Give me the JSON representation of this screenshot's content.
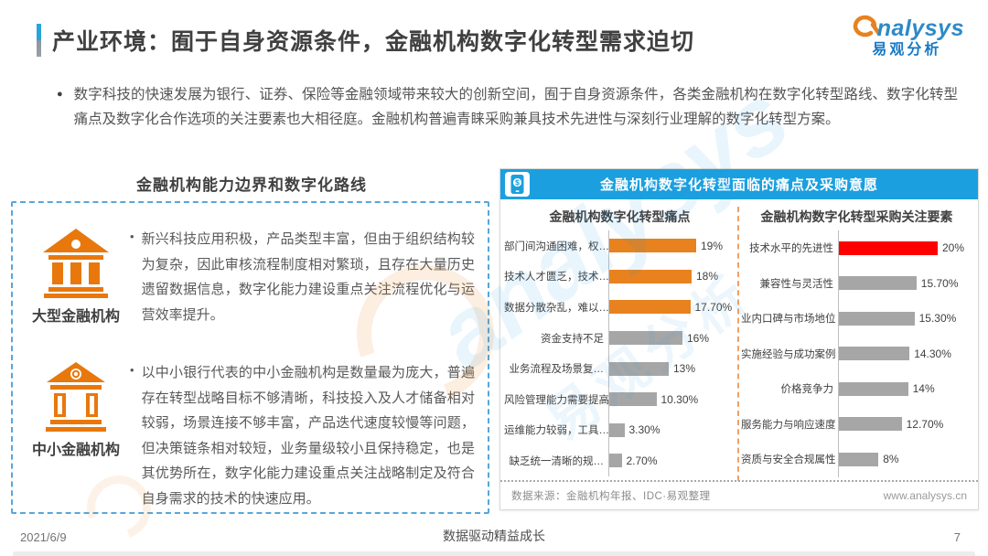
{
  "page": {
    "title": "产业环境：囿于自身资源条件，金融机构数字化转型需求迫切",
    "footer": {
      "date": "2021/6/9",
      "slogan": "数据驱动精益成长",
      "page_number": "7"
    }
  },
  "logo": {
    "brand": "nalysys",
    "brand_cn": "易观分析",
    "swirl_icon": "analysys-swirl-icon"
  },
  "watermark": {
    "brand": "analysys",
    "brand_cn": "易观分析"
  },
  "intro": {
    "bullet": "●",
    "text": "数字科技的快速发展为银行、证券、保险等金融领域带来较大的创新空间，囿于自身资源条件，各类金融机构在数字化转型路线、数字化转型痛点及数字化合作选项的关注要素也大相径庭。金融机构普遍青睐采购兼具技术先进性与深刻行业理解的数字化转型方案。"
  },
  "left_panel": {
    "heading": "金融机构能力边界和数字化路线",
    "items": [
      {
        "icon": "bank-solid-icon",
        "label": "大型金融机构",
        "bullet": "•",
        "text": "新兴科技应用积极，产品类型丰富，但由于组织结构较为复杂，因此审核流程制度相对繁琐，且存在大量历史遗留数据信息，数字化能力建设重点关注流程优化与运营效率提升。"
      },
      {
        "icon": "bank-outline-icon",
        "label": "中小金融机构",
        "bullet": "•",
        "text": "以中小银行代表的中小金融机构是数量最为庞大，普遍存在转型战略目标不够清晰，科技投入及人才储备相对较弱，场景连接不够丰富，产品迭代速度较慢等问题，但决策链条相对较短，业务量级较小且保持稳定，也是其优势所在，数字化能力建设重点关注战略制定及符合自身需求的技术的快速应用。"
      }
    ]
  },
  "right_panel": {
    "header_icon": "mobile-payment-icon",
    "header": "金融机构数字化转型面临的痛点及采购意愿",
    "source_note": "数据来源：金融机构年报、IDC·易观整理",
    "website": "www.analysys.cn"
  },
  "chart_data": [
    {
      "type": "bar",
      "orientation": "horizontal",
      "title": "金融机构数字化转型痛点",
      "categories": [
        "部门间沟通困难，权…",
        "技术人才匮乏，技术…",
        "数据分散杂乱，难以…",
        "资金支持不足",
        "业务流程及场景复…",
        "风险管理能力需要提高",
        "运维能力较弱，工具…",
        "缺乏统一清晰的规…"
      ],
      "values": [
        19,
        18,
        17.7,
        16,
        13,
        10.3,
        3.3,
        2.7
      ],
      "value_labels": [
        "19%",
        "18%",
        "17.70%",
        "16%",
        "13%",
        "10.30%",
        "3.30%",
        "2.70%"
      ],
      "bar_colors": [
        "#e8821e",
        "#e8821e",
        "#e8821e",
        "#a6a6a6",
        "#a6a6a6",
        "#a6a6a6",
        "#a6a6a6",
        "#a6a6a6"
      ],
      "xlim": [
        0,
        20
      ],
      "legend": null,
      "grid": false
    },
    {
      "type": "bar",
      "orientation": "horizontal",
      "title": "金融机构数字化转型采购关注要素",
      "categories": [
        "技术水平的先进性",
        "兼容性与灵活性",
        "业内口碑与市场地位",
        "实施经验与成功案例",
        "价格竞争力",
        "服务能力与响应速度",
        "资质与安全合规属性"
      ],
      "values": [
        20,
        15.7,
        15.3,
        14.3,
        14,
        12.7,
        8
      ],
      "value_labels": [
        "20%",
        "15.70%",
        "15.30%",
        "14.30%",
        "14%",
        "12.70%",
        "8%"
      ],
      "bar_colors": [
        "#fe0000",
        "#a6a6a6",
        "#a6a6a6",
        "#a6a6a6",
        "#a6a6a6",
        "#a6a6a6",
        "#a6a6a6"
      ],
      "xlim": [
        0,
        20
      ],
      "legend": null,
      "grid": false
    }
  ],
  "colors": {
    "accent_blue": "#1b9fdf",
    "orange": "#e8821e",
    "red": "#fe0000",
    "gray_bar": "#a6a6a6",
    "icon_orange": "#e8780c"
  }
}
